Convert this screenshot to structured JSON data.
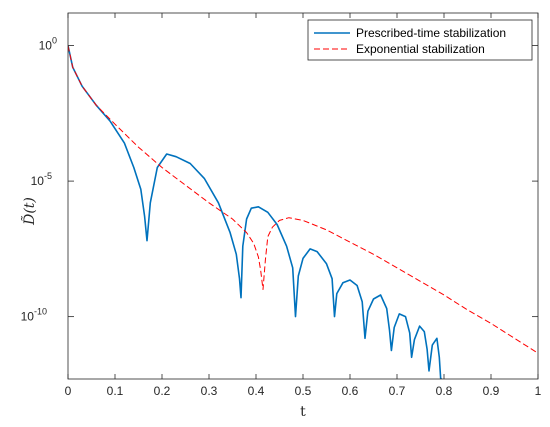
{
  "chart_data": {
    "type": "line",
    "title": "",
    "xlabel": "t",
    "ylabel": "D̃(t)",
    "xlim": [
      0,
      1
    ],
    "ylim_log10": [
      -12.3,
      1.2
    ],
    "yscale": "log",
    "grid": false,
    "legend_position": "top-right",
    "x_ticks": [
      "0",
      "0.1",
      "0.2",
      "0.3",
      "0.4",
      "0.5",
      "0.6",
      "0.7",
      "0.8",
      "0.9",
      "1"
    ],
    "y_ticks": [
      {
        "value_log10": 0,
        "label": "10",
        "exponent": "0"
      },
      {
        "value_log10": -5,
        "label": "10",
        "exponent": "-5"
      },
      {
        "value_log10": -10,
        "label": "10",
        "exponent": "-10"
      }
    ],
    "series": [
      {
        "name": "Prescribed-time stabilization",
        "color": "#0072BD",
        "style": "solid",
        "x": [
          0,
          0.01,
          0.03,
          0.06,
          0.09,
          0.12,
          0.14,
          0.155,
          0.163,
          0.168,
          0.175,
          0.19,
          0.21,
          0.23,
          0.26,
          0.29,
          0.32,
          0.345,
          0.358,
          0.365,
          0.368,
          0.372,
          0.38,
          0.39,
          0.405,
          0.425,
          0.445,
          0.465,
          0.478,
          0.484,
          0.49,
          0.5,
          0.515,
          0.53,
          0.55,
          0.562,
          0.567,
          0.572,
          0.585,
          0.6,
          0.615,
          0.626,
          0.632,
          0.638,
          0.65,
          0.665,
          0.678,
          0.684,
          0.688,
          0.694,
          0.705,
          0.718,
          0.727,
          0.731,
          0.737,
          0.748,
          0.758,
          0.764,
          0.768,
          0.775,
          0.785,
          0.79,
          0.793,
          0.796
        ],
        "log10_y": [
          0,
          -0.8,
          -1.5,
          -2.2,
          -2.8,
          -3.6,
          -4.5,
          -5.3,
          -6.3,
          -7.2,
          -5.8,
          -4.5,
          -4.0,
          -4.1,
          -4.35,
          -4.9,
          -5.8,
          -6.9,
          -7.7,
          -8.6,
          -9.3,
          -7.4,
          -6.4,
          -6.0,
          -5.95,
          -6.15,
          -6.6,
          -7.4,
          -8.2,
          -10.0,
          -8.5,
          -7.85,
          -7.5,
          -7.6,
          -8.05,
          -8.6,
          -10.0,
          -9.15,
          -8.75,
          -8.65,
          -8.85,
          -9.45,
          -10.8,
          -9.8,
          -9.35,
          -9.2,
          -9.7,
          -10.5,
          -11.25,
          -10.4,
          -9.9,
          -10.0,
          -10.6,
          -11.5,
          -10.85,
          -10.35,
          -10.55,
          -11.2,
          -12.0,
          -11.05,
          -10.8,
          -11.5,
          -12.3,
          -12.3
        ]
      },
      {
        "name": "Exponential stabilization",
        "color": "#FF0000",
        "style": "dashed",
        "x": [
          0,
          0.01,
          0.03,
          0.06,
          0.1,
          0.15,
          0.2,
          0.25,
          0.3,
          0.35,
          0.38,
          0.395,
          0.405,
          0.41,
          0.415,
          0.42,
          0.425,
          0.435,
          0.45,
          0.47,
          0.5,
          0.55,
          0.6,
          0.65,
          0.7,
          0.75,
          0.8,
          0.85,
          0.9,
          0.95,
          1.0
        ],
        "log10_y": [
          0,
          -0.8,
          -1.5,
          -2.2,
          -2.9,
          -3.75,
          -4.5,
          -5.15,
          -5.8,
          -6.4,
          -6.9,
          -7.3,
          -7.8,
          -8.3,
          -9.0,
          -7.9,
          -7.05,
          -6.7,
          -6.45,
          -6.35,
          -6.45,
          -6.8,
          -7.25,
          -7.7,
          -8.2,
          -8.7,
          -9.2,
          -9.75,
          -10.25,
          -10.8,
          -11.35
        ]
      }
    ]
  }
}
